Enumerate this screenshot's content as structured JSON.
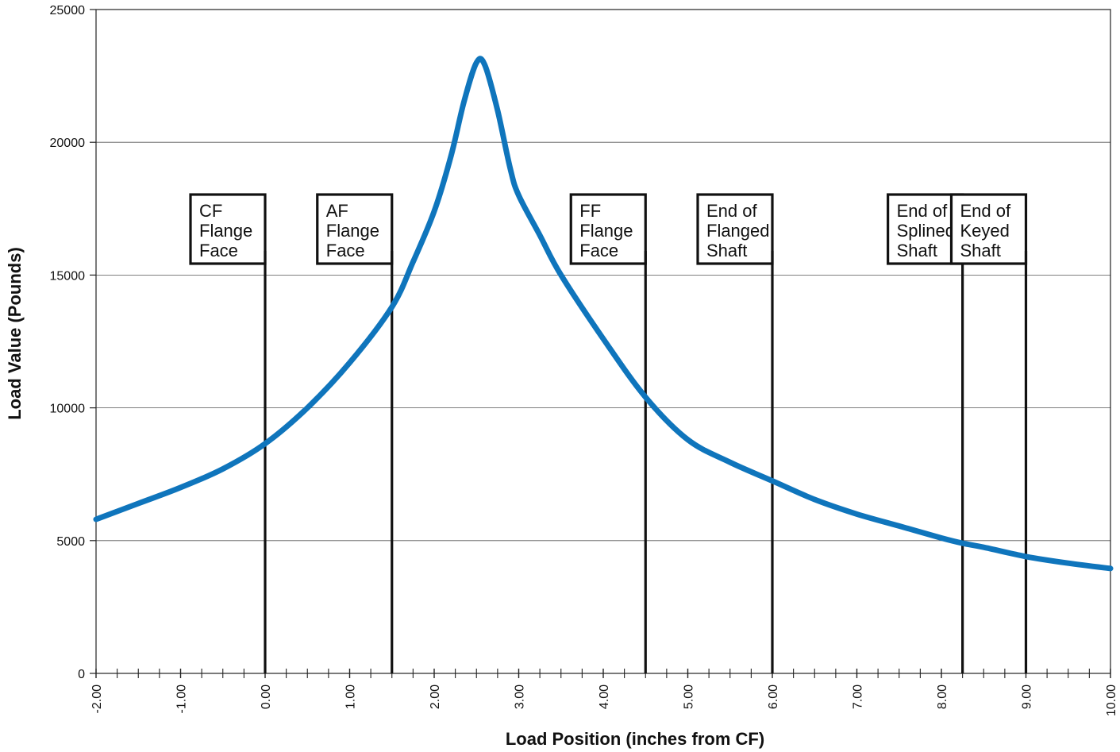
{
  "chart_data": {
    "type": "line",
    "xlabel": "Load Position (inches from CF)",
    "ylabel": "Load Value (Pounds)",
    "xlim": [
      -2,
      10
    ],
    "ylim": [
      0,
      25000
    ],
    "x_tick_labels": [
      "-2.00",
      "-1.00",
      "0.00",
      "1.00",
      "2.00",
      "3.00",
      "4.00",
      "5.00",
      "6.00",
      "7.00",
      "8.00",
      "9.00",
      "10.00"
    ],
    "y_tick_labels": [
      "0",
      "5000",
      "10000",
      "15000",
      "20000",
      "25000"
    ],
    "y_ticks": [
      0,
      5000,
      10000,
      15000,
      20000,
      25000
    ],
    "grid": "horizontal",
    "line_color": "#0f75bc",
    "series": [
      {
        "x": [
          -2.0,
          -1.5,
          -1.0,
          -0.5,
          0.0,
          0.5,
          1.0,
          1.5,
          1.75,
          2.0,
          2.2,
          2.35,
          2.5,
          2.6,
          2.75,
          2.9,
          3.0,
          3.25,
          3.5,
          4.0,
          4.5,
          5.0,
          5.5,
          6.0,
          6.5,
          7.0,
          7.5,
          8.0,
          8.25,
          8.5,
          9.0,
          9.5,
          10.0
        ],
        "y": [
          5800,
          6400,
          7000,
          7700,
          8650,
          10000,
          11700,
          13800,
          15500,
          17400,
          19500,
          21500,
          23000,
          22900,
          21200,
          19000,
          18000,
          16500,
          15000,
          12600,
          10400,
          8800,
          7950,
          7250,
          6550,
          6000,
          5550,
          5100,
          4900,
          4750,
          4400,
          4150,
          3950
        ]
      }
    ],
    "markers": [
      {
        "x": 0.0,
        "label": [
          "CF",
          "Flange",
          "Face"
        ]
      },
      {
        "x": 1.5,
        "label": [
          "AF",
          "Flange",
          "Face"
        ]
      },
      {
        "x": 4.5,
        "label": [
          "FF",
          "Flange",
          "Face"
        ]
      },
      {
        "x": 6.0,
        "label": [
          "End of",
          "Flanged",
          "Shaft"
        ]
      },
      {
        "x": 8.25,
        "label": [
          "End of",
          "Splined",
          "Shaft"
        ]
      },
      {
        "x": 9.0,
        "label": [
          "End of",
          "Keyed",
          "Shaft"
        ]
      }
    ]
  }
}
